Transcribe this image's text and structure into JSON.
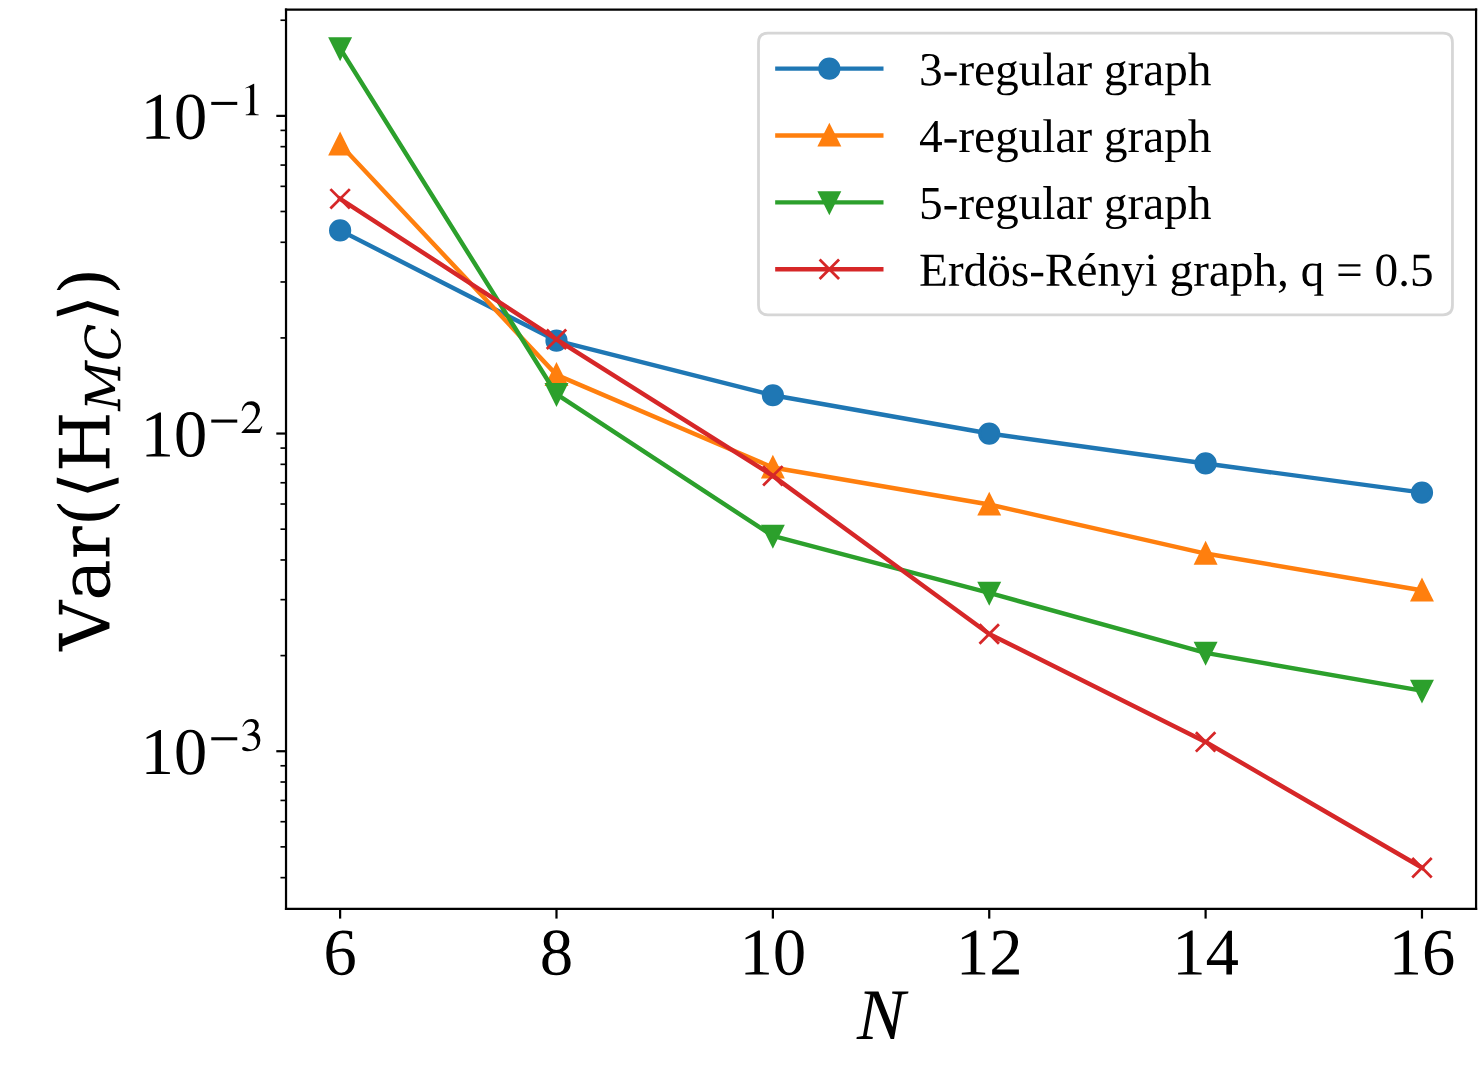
{
  "chart_data": {
    "type": "line",
    "xlabel": "N",
    "ylabel": "Var(⟨H$_{MC}$⟩)",
    "x": [
      6,
      8,
      10,
      12,
      14,
      16
    ],
    "series": [
      {
        "name": "3-regular graph",
        "color": "#1f77b4",
        "marker": "circle",
        "values": [
          0.0436,
          0.0196,
          0.0132,
          0.01,
          0.00805,
          0.00652
        ]
      },
      {
        "name": "4-regular graph",
        "color": "#ff7f0e",
        "marker": "triangle",
        "values": [
          0.0813,
          0.0153,
          0.00782,
          0.00598,
          0.00419,
          0.00321
        ]
      },
      {
        "name": "5-regular graph",
        "color": "#2ca02c",
        "marker": "triangle_down",
        "values": [
          0.163,
          0.0133,
          0.00476,
          0.00315,
          0.00204,
          0.00155
        ]
      },
      {
        "name": "Erdös-Rényi graph, q = 0.5",
        "color": "#d62728",
        "marker": "cross",
        "values": [
          0.0548,
          0.0198,
          0.00736,
          0.00234,
          0.00107,
          0.00043
        ]
      }
    ],
    "log": "y",
    "xlim": [
      5.5,
      16.5
    ],
    "xticks": [
      6,
      8,
      10,
      12,
      14,
      16
    ],
    "ylim": [
      0.000319,
      0.216
    ],
    "yticks": [
      {
        "value": 0.001,
        "label": "10$^{−3}$"
      },
      {
        "value": 0.01,
        "label": "10$^{−2}$"
      },
      {
        "value": 0.1,
        "label": "10$^{−1}$"
      }
    ],
    "grid": false,
    "legend": "top right",
    "line_style": "solid"
  }
}
